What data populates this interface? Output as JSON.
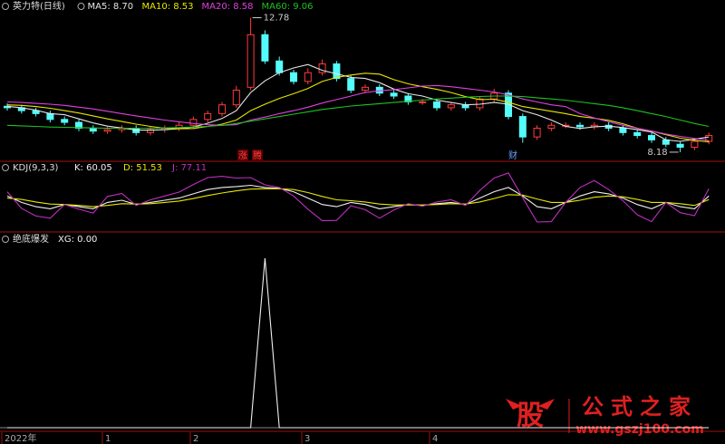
{
  "chart_data": [
    {
      "type": "candlestick",
      "title": "英力特(日线)",
      "ylim": [
        7.93,
        13.2
      ],
      "open": [
        9.75,
        9.7,
        9.6,
        9.5,
        9.3,
        9.2,
        9.0,
        8.9,
        8.95,
        9.0,
        8.85,
        8.95,
        9.0,
        9.1,
        9.3,
        9.5,
        9.8,
        10.4,
        12.2,
        11.3,
        10.9,
        10.6,
        10.9,
        11.2,
        10.7,
        10.3,
        10.4,
        10.2,
        10.1,
        9.9,
        9.9,
        9.7,
        9.8,
        9.7,
        10.0,
        10.2,
        9.4,
        8.7,
        9.0,
        9.1,
        9.1,
        9.05,
        9.1,
        9.0,
        8.85,
        8.75,
        8.6,
        8.45,
        8.35,
        8.55
      ],
      "high": [
        9.85,
        9.8,
        9.7,
        9.6,
        9.4,
        9.3,
        9.1,
        9.05,
        9.1,
        9.1,
        9.05,
        9.1,
        9.2,
        9.4,
        9.6,
        9.9,
        10.45,
        12.78,
        12.35,
        11.45,
        11.0,
        11.05,
        11.35,
        11.3,
        10.8,
        10.5,
        10.5,
        10.3,
        10.2,
        10.0,
        10.0,
        9.9,
        9.9,
        10.1,
        10.35,
        10.3,
        9.5,
        9.1,
        9.2,
        9.2,
        9.2,
        9.2,
        9.2,
        9.1,
        8.95,
        8.85,
        8.7,
        8.55,
        8.65,
        8.85
      ],
      "low": [
        9.6,
        9.5,
        9.4,
        9.2,
        9.1,
        8.9,
        8.8,
        8.8,
        8.85,
        8.75,
        8.75,
        8.85,
        8.9,
        9.0,
        9.2,
        9.4,
        9.7,
        10.3,
        11.2,
        10.8,
        10.5,
        10.5,
        10.8,
        10.6,
        10.2,
        10.2,
        10.1,
        10.0,
        9.8,
        9.8,
        9.6,
        9.6,
        9.6,
        9.6,
        9.9,
        9.3,
        8.5,
        8.6,
        8.9,
        9.0,
        8.95,
        8.95,
        8.9,
        8.75,
        8.65,
        8.5,
        8.35,
        8.18,
        8.25,
        8.45
      ],
      "close": [
        9.7,
        9.6,
        9.5,
        9.3,
        9.2,
        9.0,
        8.9,
        8.95,
        9.0,
        8.85,
        8.95,
        9.0,
        9.1,
        9.3,
        9.5,
        9.8,
        10.3,
        12.2,
        11.3,
        10.9,
        10.6,
        10.9,
        11.2,
        10.7,
        10.3,
        10.4,
        10.2,
        10.1,
        9.9,
        9.9,
        9.7,
        9.8,
        9.7,
        10.0,
        10.2,
        9.4,
        8.7,
        9.0,
        9.1,
        9.1,
        9.05,
        9.1,
        9.0,
        8.85,
        8.75,
        8.6,
        8.45,
        8.35,
        8.55,
        8.75
      ],
      "up_color": "#ff3c3c",
      "down_color": "#54fcfc",
      "series": [
        {
          "name": "MA5: 8.70",
          "color": "#e6e6e6",
          "values": [
            9.75,
            9.7,
            9.62,
            9.5,
            9.46,
            9.32,
            9.18,
            9.07,
            9.01,
            8.94,
            8.93,
            8.95,
            8.98,
            9.04,
            9.17,
            9.33,
            9.6,
            10.22,
            10.62,
            10.9,
            11.06,
            11.18,
            10.98,
            10.86,
            10.74,
            10.7,
            10.56,
            10.34,
            10.18,
            10.1,
            9.96,
            9.88,
            9.8,
            9.82,
            9.88,
            9.82,
            9.6,
            9.46,
            9.28,
            9.06,
            8.99,
            9.05,
            9.07,
            9.02,
            8.95,
            8.87,
            8.6,
            8.55,
            8.62,
            8.7
          ]
        },
        {
          "name": "MA10: 8.53",
          "color": "#e8e800",
          "values": [
            9.8,
            9.78,
            9.74,
            9.68,
            9.6,
            9.52,
            9.42,
            9.32,
            9.23,
            9.14,
            9.06,
            9.0,
            8.98,
            8.99,
            9.06,
            9.14,
            9.28,
            9.6,
            9.82,
            10.02,
            10.18,
            10.36,
            10.6,
            10.74,
            10.82,
            10.88,
            10.85,
            10.66,
            10.52,
            10.42,
            10.33,
            10.22,
            10.08,
            9.98,
            9.99,
            9.89,
            9.74,
            9.66,
            9.58,
            9.5,
            9.4,
            9.34,
            9.27,
            9.15,
            9.0,
            8.9,
            8.78,
            8.66,
            8.58,
            8.53
          ]
        },
        {
          "name": "MA20: 8.58",
          "color": "#e040e0",
          "values": [
            9.9,
            9.88,
            9.85,
            9.82,
            9.78,
            9.72,
            9.66,
            9.58,
            9.5,
            9.42,
            9.35,
            9.28,
            9.22,
            9.16,
            9.12,
            9.1,
            9.12,
            9.28,
            9.38,
            9.5,
            9.6,
            9.72,
            9.86,
            9.98,
            10.1,
            10.22,
            10.28,
            10.32,
            10.38,
            10.44,
            10.46,
            10.42,
            10.36,
            10.3,
            10.24,
            10.14,
            10.0,
            9.9,
            9.8,
            9.74,
            9.5,
            9.35,
            9.22,
            9.1,
            9.0,
            8.9,
            8.8,
            8.72,
            8.65,
            8.58
          ]
        },
        {
          "name": "MA60: 9.06",
          "color": "#20c020",
          "values": [
            9.1,
            9.08,
            9.06,
            9.04,
            9.03,
            9.02,
            9.01,
            9.0,
            9.0,
            9.0,
            9.0,
            9.01,
            9.02,
            9.04,
            9.06,
            9.1,
            9.16,
            9.24,
            9.32,
            9.4,
            9.48,
            9.56,
            9.64,
            9.7,
            9.76,
            9.8,
            9.84,
            9.88,
            9.92,
            9.96,
            10.0,
            10.03,
            10.06,
            10.08,
            10.1,
            10.1,
            10.08,
            10.04,
            10.0,
            9.96,
            9.9,
            9.84,
            9.78,
            9.7,
            9.6,
            9.5,
            9.4,
            9.28,
            9.16,
            9.06
          ]
        }
      ],
      "markers": [
        {
          "text": "涨",
          "color": "#ff4040"
        },
        {
          "text": "腾",
          "color": "#ff4040"
        },
        {
          "text": "财",
          "color": "#6aa0ff"
        }
      ]
    },
    {
      "type": "line",
      "title": "KDJ(9,3,3)",
      "ylim": [
        -20,
        120
      ],
      "series": [
        {
          "name": "K: 60.05",
          "color": "#f0f0f0",
          "values": [
            60,
            45,
            35,
            30,
            40,
            35,
            30,
            45,
            50,
            40,
            45,
            50,
            55,
            65,
            75,
            80,
            82,
            85,
            80,
            78,
            70,
            55,
            40,
            35,
            45,
            40,
            30,
            35,
            40,
            38,
            42,
            45,
            40,
            55,
            70,
            80,
            60,
            35,
            30,
            45,
            60,
            70,
            65,
            55,
            40,
            30,
            45,
            35,
            30,
            60.05
          ]
        },
        {
          "name": "D: 51.53",
          "color": "#e8e800",
          "values": [
            55,
            52,
            46,
            41,
            40,
            38,
            35,
            38,
            42,
            41,
            42,
            45,
            48,
            54,
            61,
            67,
            72,
            76,
            77,
            77,
            75,
            68,
            59,
            51,
            49,
            46,
            41,
            39,
            39,
            39,
            40,
            42,
            41,
            46,
            54,
            63,
            62,
            53,
            45,
            45,
            50,
            57,
            60,
            58,
            52,
            45,
            45,
            42,
            38,
            51.53
          ]
        },
        {
          "name": "J: 77.11",
          "color": "#c030c0",
          "values": [
            70,
            31,
            13,
            8,
            40,
            29,
            20,
            59,
            66,
            38,
            51,
            60,
            69,
            87,
            103,
            106,
            102,
            103,
            86,
            80,
            60,
            29,
            2,
            3,
            37,
            28,
            8,
            27,
            42,
            36,
            46,
            51,
            38,
            73,
            102,
            114,
            56,
            -1,
            0,
            45,
            80,
            96,
            75,
            49,
            16,
            0,
            45,
            21,
            14,
            77.11
          ]
        }
      ]
    },
    {
      "type": "line",
      "title": "绝底爆发",
      "ylim": [
        0,
        100
      ],
      "series": [
        {
          "name": "XG: 0.00",
          "color": "#f0f0f0",
          "values": [
            0,
            0,
            0,
            0,
            0,
            0,
            0,
            0,
            0,
            0,
            0,
            0,
            0,
            0,
            0,
            0,
            0,
            0,
            100,
            0,
            0,
            0,
            0,
            0,
            0,
            0,
            0,
            0,
            0,
            0,
            0,
            0,
            0,
            0,
            0,
            0,
            0,
            0,
            0,
            0,
            0,
            0,
            0,
            0,
            0,
            0,
            0,
            0,
            0,
            0
          ]
        }
      ]
    }
  ],
  "x_axis_labels": [
    "2022年",
    "1",
    "2",
    "3",
    "4"
  ],
  "watermark": {
    "icon": "股",
    "name": "公式之家",
    "url": "www.gszj100.com"
  }
}
